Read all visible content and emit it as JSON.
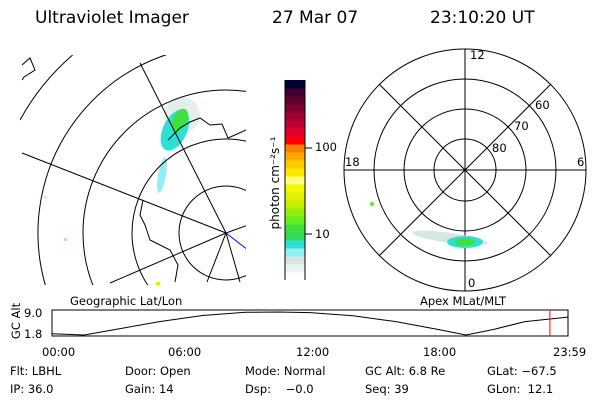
{
  "header": {
    "instrument": "Ultraviolet Imager",
    "date": "27 Mar 07",
    "time": "23:10:20 UT"
  },
  "colorbar": {
    "label": "photon cm⁻²s⁻¹",
    "tick_100": "100",
    "tick_10": "10",
    "colors": [
      "#ffffff",
      "#eaf4ee",
      "#d6e6e4",
      "#94eef4",
      "#2ee0d4",
      "#30dc60",
      "#40e040",
      "#60f020",
      "#90f010",
      "#c0f000",
      "#e0f000",
      "#f0f800",
      "#ffff80",
      "#ffe800",
      "#ffcc00",
      "#ffaa00",
      "#ff8000",
      "#ff0000",
      "#e00030",
      "#c00030",
      "#a00030",
      "#800030",
      "#600030",
      "#400030",
      "#000030"
    ]
  },
  "left_map": {
    "label": "Geographic Lat/Lon"
  },
  "right_map": {
    "label": "Apex MLat/MLT",
    "mlt_12": "12",
    "mlt_18": "18",
    "mlt_6": "6",
    "mlt_0": "0",
    "lat_60": "60",
    "lat_70": "70",
    "lat_80": "80"
  },
  "orbit": {
    "ylabel": "GC Alt",
    "ymax": "9.0",
    "ymin": "1.8",
    "ticks": [
      "00:00",
      "06:00",
      "12:00",
      "18:00",
      "23:59"
    ],
    "current_time_fraction": 0.965,
    "altitude_hours": [
      0,
      1.5,
      3,
      5,
      7,
      9,
      10.5,
      12,
      14,
      16,
      18,
      19.25,
      20.5,
      22,
      24
    ],
    "altitude_values": [
      2.2,
      1.8,
      3.6,
      6.0,
      7.9,
      8.9,
      9.0,
      8.8,
      7.8,
      6.0,
      3.5,
      1.8,
      3.5,
      6.0,
      7.4
    ]
  },
  "status": {
    "row1": [
      "Flt: LBHL",
      "Door: Open",
      "Mode: Normal",
      "GC Alt: 6.8 Re",
      "GLat: −67.5"
    ],
    "row2": [
      "IP: 36.0",
      "Gain: 14",
      "Dsp:    −0.0",
      "Seq: 39",
      "GLon:  12.1"
    ]
  }
}
